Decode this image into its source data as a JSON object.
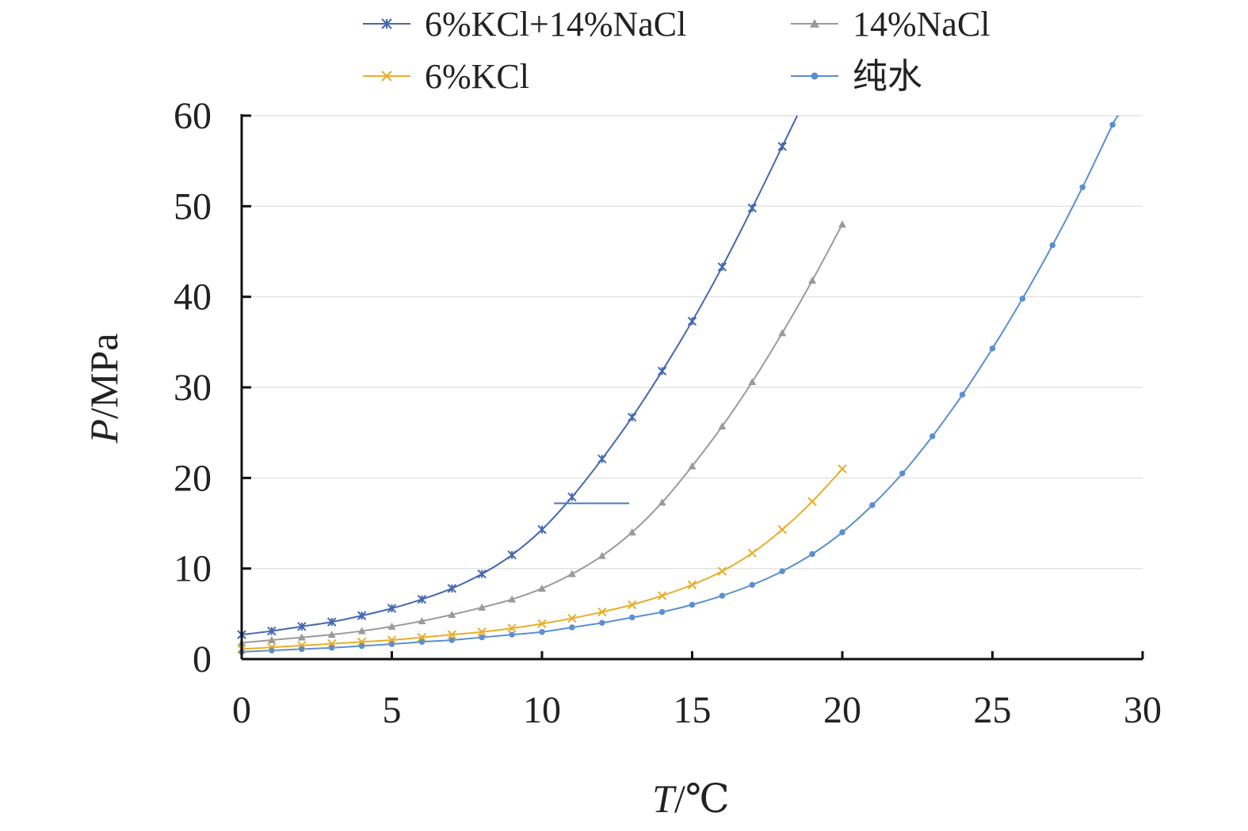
{
  "chart_data": {
    "type": "line",
    "xlabel": {
      "var": "T",
      "unit": "/℃"
    },
    "ylabel": {
      "var": "P",
      "unit": "/MPa"
    },
    "xlim": [
      0,
      30
    ],
    "ylim": [
      0,
      60
    ],
    "xticks": [
      "0",
      "5",
      "10",
      "15",
      "20",
      "25",
      "30"
    ],
    "yticks": [
      "0",
      "10",
      "20",
      "30",
      "40",
      "50",
      "60"
    ],
    "grid": "horizontal",
    "legend_position": "top",
    "series": [
      {
        "name": "6%KCl+14%NaCl",
        "color": "#4468b0",
        "marker": "asterisk",
        "x": [
          0,
          1,
          2,
          3,
          4,
          5,
          6,
          7,
          8,
          9,
          10,
          11,
          12,
          13,
          14,
          15,
          16,
          17,
          18,
          18.5
        ],
        "y": [
          2.7,
          3.1,
          3.6,
          4.1,
          4.8,
          5.6,
          6.6,
          7.8,
          9.4,
          11.5,
          14.3,
          17.9,
          22.1,
          26.7,
          31.8,
          37.3,
          43.3,
          49.8,
          56.6,
          60
        ]
      },
      {
        "name": "14%NaCl",
        "color": "#9a9a9a",
        "marker": "triangle",
        "x": [
          0,
          1,
          2,
          3,
          4,
          5,
          6,
          7,
          8,
          9,
          10,
          11,
          12,
          13,
          14,
          15,
          16,
          17,
          18,
          19,
          20
        ],
        "y": [
          1.8,
          2.1,
          2.4,
          2.7,
          3.1,
          3.6,
          4.2,
          4.9,
          5.7,
          6.6,
          7.8,
          9.4,
          11.4,
          14.0,
          17.3,
          21.3,
          25.7,
          30.6,
          36.0,
          41.8,
          48.0
        ]
      },
      {
        "name": "6%KCl",
        "color": "#e8ae2a",
        "marker": "x",
        "x": [
          0,
          1,
          2,
          3,
          4,
          5,
          6,
          7,
          8,
          9,
          10,
          11,
          12,
          13,
          14,
          15,
          16,
          17,
          18,
          19,
          20
        ],
        "y": [
          1.1,
          1.3,
          1.5,
          1.7,
          1.9,
          2.1,
          2.4,
          2.7,
          3.0,
          3.4,
          3.9,
          4.5,
          5.2,
          6.0,
          7.0,
          8.2,
          9.7,
          11.7,
          14.3,
          17.4,
          21.0
        ]
      },
      {
        "name": "纯水",
        "color": "#5b8fd0",
        "marker": "circle",
        "x": [
          0,
          1,
          2,
          3,
          4,
          5,
          6,
          7,
          8,
          9,
          10,
          11,
          12,
          13,
          14,
          15,
          16,
          17,
          18,
          19,
          20,
          21,
          22,
          23,
          24,
          25,
          26,
          27,
          28,
          29,
          29.2
        ],
        "y": [
          0.8,
          0.95,
          1.1,
          1.25,
          1.45,
          1.65,
          1.9,
          2.1,
          2.4,
          2.7,
          3.0,
          3.5,
          4.0,
          4.6,
          5.2,
          6.0,
          7.0,
          8.2,
          9.7,
          11.6,
          14.0,
          17.0,
          20.5,
          24.6,
          29.2,
          34.3,
          39.8,
          45.7,
          52.1,
          59.0,
          60
        ]
      }
    ],
    "annotation_segment": {
      "x1": 10.4,
      "x2": 12.9,
      "y": 17.2
    }
  }
}
